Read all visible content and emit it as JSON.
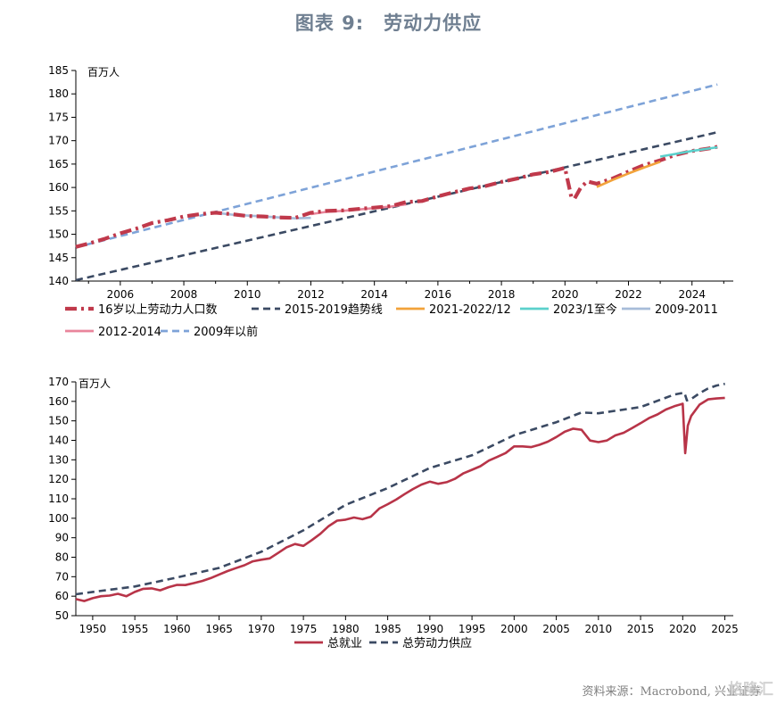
{
  "figure_title": "图表 9:　劳动力供应",
  "source_note": "资料来源：Macrobond, 兴业证券",
  "watermark": "格隆汇",
  "chart_data": [
    {
      "type": "line",
      "unit_label": "百万人",
      "ylim": [
        140,
        185
      ],
      "yticks": [
        140,
        145,
        150,
        155,
        160,
        165,
        170,
        175,
        180,
        185
      ],
      "xlim": [
        2004.6,
        2025.3
      ],
      "xticks": [
        2006,
        2008,
        2010,
        2012,
        2014,
        2016,
        2018,
        2020,
        2022,
        2024
      ],
      "grid": false,
      "legend_position": "bottom",
      "series": [
        {
          "name": "16岁以上劳动力人口数",
          "color": "#c0394b",
          "style": "dashdot-thick",
          "x": [
            2004.6,
            2005.0,
            2005.5,
            2006.0,
            2006.5,
            2007.0,
            2007.5,
            2008.0,
            2008.5,
            2009.0,
            2009.5,
            2010.0,
            2010.5,
            2011.0,
            2011.5,
            2012.0,
            2012.5,
            2013.0,
            2013.5,
            2014.0,
            2014.5,
            2015.0,
            2015.5,
            2016.0,
            2016.5,
            2017.0,
            2017.5,
            2018.0,
            2018.5,
            2019.0,
            2019.5,
            2020.0,
            2020.2,
            2020.3,
            2020.5,
            2020.7,
            2021.0,
            2021.5,
            2022.0,
            2022.5,
            2023.0,
            2023.5,
            2024.0,
            2024.5,
            2024.8
          ],
          "y": [
            147.3,
            148.0,
            149.0,
            150.2,
            151.2,
            152.4,
            153.0,
            153.8,
            154.3,
            154.6,
            154.3,
            153.9,
            153.8,
            153.6,
            153.5,
            154.6,
            155.0,
            155.1,
            155.4,
            155.7,
            156.0,
            156.9,
            157.1,
            158.1,
            159.0,
            159.8,
            160.3,
            161.2,
            161.9,
            162.8,
            163.3,
            164.2,
            158.0,
            157.6,
            160.0,
            161.3,
            160.8,
            161.9,
            163.4,
            164.8,
            165.8,
            167.0,
            167.8,
            168.3,
            168.7
          ]
        },
        {
          "name": "2015-2019趋势线",
          "color": "#3b4a63",
          "style": "dashed",
          "x": [
            2004.6,
            2024.8
          ],
          "y": [
            140.2,
            171.8
          ]
        },
        {
          "name": "2021-2022/12",
          "color": "#f2a23a",
          "style": "solid",
          "x": [
            2021.0,
            2021.5,
            2022.0,
            2022.5,
            2023.0
          ],
          "y": [
            160.1,
            161.6,
            163.0,
            164.3,
            165.5
          ]
        },
        {
          "name": "2023/1至今",
          "color": "#5bd1cc",
          "style": "solid",
          "x": [
            2023.0,
            2023.5,
            2024.0,
            2024.5,
            2024.8
          ],
          "y": [
            166.6,
            167.2,
            167.8,
            168.3,
            168.6
          ]
        },
        {
          "name": "2009-2011",
          "color": "#a7bcd9",
          "style": "solid",
          "x": [
            2009.0,
            2009.5,
            2010.0,
            2010.5,
            2011.0,
            2011.5,
            2012.0
          ],
          "y": [
            154.6,
            154.2,
            154.0,
            153.8,
            153.6,
            153.4,
            153.5
          ]
        },
        {
          "name": "2012-2014",
          "color": "#e9859b",
          "style": "solid",
          "x": [
            2012.0,
            2012.5,
            2013.0,
            2013.5,
            2014.0,
            2014.5,
            2015.0
          ],
          "y": [
            154.3,
            154.8,
            155.0,
            155.3,
            155.6,
            155.9,
            156.4
          ]
        },
        {
          "name": "2009年以前",
          "color": "#7ea3d8",
          "style": "dashed",
          "x": [
            2004.6,
            2024.8
          ],
          "y": [
            147.2,
            182.0
          ]
        }
      ]
    },
    {
      "type": "line",
      "unit_label": "百万人",
      "ylim": [
        50,
        170
      ],
      "yticks": [
        50,
        60,
        70,
        80,
        90,
        100,
        110,
        120,
        130,
        140,
        150,
        160,
        170
      ],
      "xlim": [
        1948,
        2026
      ],
      "xticks": [
        1950,
        1955,
        1960,
        1965,
        1970,
        1975,
        1980,
        1985,
        1990,
        1995,
        2000,
        2005,
        2010,
        2015,
        2020,
        2025
      ],
      "grid": false,
      "legend_position": "bottom",
      "series": [
        {
          "name": "总就业",
          "color": "#b83448",
          "style": "solid",
          "x": [
            1948,
            1949,
            1950,
            1951,
            1952,
            1953,
            1954,
            1955,
            1956,
            1957,
            1958,
            1959,
            1960,
            1961,
            1962,
            1963,
            1964,
            1965,
            1966,
            1967,
            1968,
            1969,
            1970,
            1971,
            1972,
            1973,
            1974,
            1975,
            1976,
            1977,
            1978,
            1979,
            1980,
            1981,
            1982,
            1983,
            1984,
            1985,
            1986,
            1987,
            1988,
            1989,
            1990,
            1991,
            1992,
            1993,
            1994,
            1995,
            1996,
            1997,
            1998,
            1999,
            2000,
            2001,
            2002,
            2003,
            2004,
            2005,
            2006,
            2007,
            2008,
            2009,
            2010,
            2011,
            2012,
            2013,
            2014,
            2015,
            2016,
            2017,
            2018,
            2019,
            2020.0,
            2020.3,
            2020.6,
            2021,
            2022,
            2023,
            2024,
            2025
          ],
          "y": [
            58.5,
            57.5,
            59.0,
            60.0,
            60.3,
            61.2,
            60.0,
            62.2,
            63.8,
            64.0,
            63.0,
            64.6,
            65.8,
            65.7,
            66.7,
            67.8,
            69.3,
            71.1,
            72.9,
            74.4,
            75.9,
            77.9,
            78.7,
            79.4,
            82.2,
            85.1,
            86.8,
            85.8,
            88.8,
            92.0,
            96.0,
            98.8,
            99.3,
            100.4,
            99.5,
            100.8,
            105.0,
            107.2,
            109.6,
            112.4,
            115.0,
            117.3,
            118.8,
            117.7,
            118.5,
            120.3,
            123.1,
            124.9,
            126.7,
            129.6,
            131.5,
            133.5,
            136.9,
            136.9,
            136.5,
            137.7,
            139.3,
            141.7,
            144.4,
            146.0,
            145.4,
            139.9,
            139.1,
            139.9,
            142.5,
            143.9,
            146.3,
            148.8,
            151.4,
            153.3,
            155.8,
            157.5,
            158.8,
            133.4,
            147.5,
            152.5,
            158.3,
            161.0,
            161.5,
            161.8
          ]
        },
        {
          "name": "总劳动力供应",
          "color": "#3b4a63",
          "style": "dashed",
          "x": [
            1948,
            1950,
            1955,
            1960,
            1965,
            1970,
            1975,
            1980,
            1985,
            1990,
            1995,
            2000,
            2005,
            2008,
            2010,
            2015,
            2019,
            2020.2,
            2020.5,
            2021,
            2022,
            2023,
            2024,
            2025
          ],
          "y": [
            61.0,
            62.2,
            65.0,
            69.6,
            74.5,
            82.8,
            93.8,
            106.9,
            115.5,
            125.8,
            132.3,
            142.6,
            149.3,
            154.3,
            153.9,
            157.1,
            163.5,
            164.5,
            160.5,
            161.2,
            164.2,
            166.6,
            168.1,
            169.0
          ]
        }
      ]
    }
  ]
}
